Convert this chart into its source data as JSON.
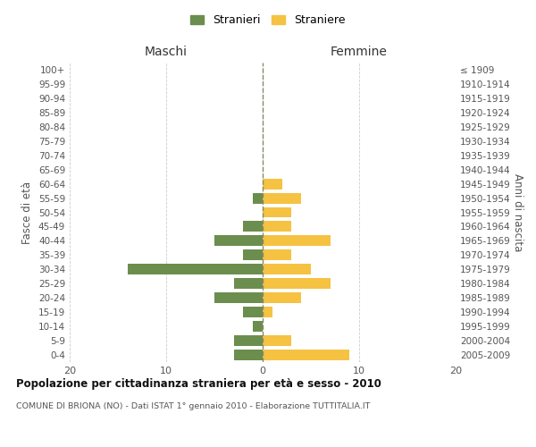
{
  "age_groups": [
    "0-4",
    "5-9",
    "10-14",
    "15-19",
    "20-24",
    "25-29",
    "30-34",
    "35-39",
    "40-44",
    "45-49",
    "50-54",
    "55-59",
    "60-64",
    "65-69",
    "70-74",
    "75-79",
    "80-84",
    "85-89",
    "90-94",
    "95-99",
    "100+"
  ],
  "birth_years": [
    "2005-2009",
    "2000-2004",
    "1995-1999",
    "1990-1994",
    "1985-1989",
    "1980-1984",
    "1975-1979",
    "1970-1974",
    "1965-1969",
    "1960-1964",
    "1955-1959",
    "1950-1954",
    "1945-1949",
    "1940-1944",
    "1935-1939",
    "1930-1934",
    "1925-1929",
    "1920-1924",
    "1915-1919",
    "1910-1914",
    "≤ 1909"
  ],
  "maschi": [
    3,
    3,
    1,
    2,
    5,
    3,
    14,
    2,
    5,
    2,
    0,
    1,
    0,
    0,
    0,
    0,
    0,
    0,
    0,
    0,
    0
  ],
  "femmine": [
    9,
    3,
    0,
    1,
    4,
    7,
    5,
    3,
    7,
    3,
    3,
    4,
    2,
    0,
    0,
    0,
    0,
    0,
    0,
    0,
    0
  ],
  "color_maschi": "#6b8e4e",
  "color_femmine": "#f5c242",
  "title": "Popolazione per cittadinanza straniera per età e sesso - 2010",
  "subtitle": "COMUNE DI BRIONA (NO) - Dati ISTAT 1° gennaio 2010 - Elaborazione TUTTITALIA.IT",
  "xlabel_left": "Maschi",
  "xlabel_right": "Femmine",
  "ylabel_left": "Fasce di età",
  "ylabel_right": "Anni di nascita",
  "xlim": 20,
  "legend_maschi": "Stranieri",
  "legend_femmine": "Straniere",
  "background_color": "#ffffff",
  "grid_color": "#cccccc"
}
